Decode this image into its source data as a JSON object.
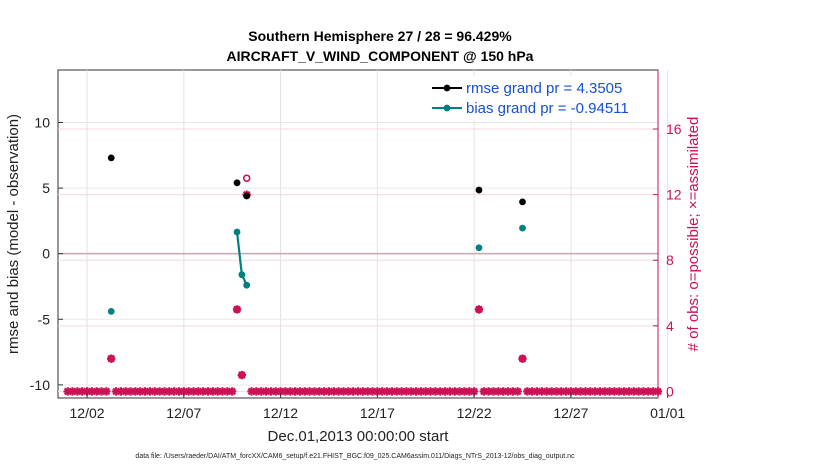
{
  "chart_data": {
    "type": "scatter",
    "title_line1": "Southern Hemisphere 27 / 28 = 96.429%",
    "title_line2": "AIRCRAFT_V_WIND_COMPONENT @ 150 hPa",
    "xlabel": "Dec.01,2013 00:00:00 start",
    "ylabel_left": "rmse and bias (model - observation)",
    "ylabel_right": "# of obs: o=possible; ×=assimilated",
    "xlim": [
      0.5,
      31.5
    ],
    "ylim_left": [
      -11,
      14
    ],
    "ylim_right": [
      -0.4,
      19.6
    ],
    "x_ticks": [
      2,
      7,
      12,
      17,
      22,
      27,
      32
    ],
    "x_tick_labels": [
      "12/02",
      "12/07",
      "12/12",
      "12/17",
      "12/22",
      "12/27",
      "01/01"
    ],
    "y_ticks_left": [
      -10,
      -5,
      0,
      5,
      10
    ],
    "y_tick_labels_left": [
      "-10",
      "-5",
      "0",
      "5",
      "10"
    ],
    "y_ticks_right": [
      0,
      4,
      8,
      12,
      16
    ],
    "y_tick_labels_right": [
      "0",
      "4",
      "8",
      "12",
      "16"
    ],
    "legend": {
      "position": "top-right",
      "entries": [
        "rmse grand pr = 4.3505",
        "bias grand pr = -0.94511"
      ]
    },
    "series": [
      {
        "name": "rmse",
        "color": "#000000",
        "axis": "left",
        "points": [
          [
            3.25,
            7.3
          ],
          [
            9.75,
            5.4
          ],
          [
            10.25,
            4.4
          ],
          [
            22.25,
            4.85
          ],
          [
            24.5,
            3.95
          ]
        ]
      },
      {
        "name": "bias",
        "color": "#008080",
        "axis": "left",
        "points": [
          [
            3.25,
            -4.4
          ],
          [
            9.75,
            1.65
          ],
          [
            10.0,
            -1.6
          ],
          [
            10.25,
            -2.4
          ],
          [
            22.25,
            0.45
          ],
          [
            24.5,
            1.95
          ]
        ],
        "connected_segments": [
          [
            1,
            2,
            3
          ]
        ]
      },
      {
        "name": "obs possible",
        "color": "#cc1156",
        "marker": "circle",
        "axis": "right",
        "points": [
          [
            3.25,
            2
          ],
          [
            9.75,
            5
          ],
          [
            10.0,
            1
          ],
          [
            10.25,
            13
          ],
          [
            22.25,
            5
          ],
          [
            24.5,
            2
          ]
        ]
      },
      {
        "name": "obs assimilated",
        "color": "#cc1156",
        "marker": "star",
        "axis": "right",
        "points": [
          [
            3.25,
            2
          ],
          [
            9.75,
            5
          ],
          [
            10.0,
            1
          ],
          [
            10.25,
            12
          ],
          [
            22.25,
            5
          ],
          [
            24.5,
            2
          ]
        ]
      }
    ],
    "zero_line_obs_count": 0
  },
  "footer": "data file: /Users/raeder/DAI/ATM_forcXX/CAM6_setup/f.e21.FHIST_BGC.f09_025.CAM6assim.011/Diags_NTrS_2013-12/obs_diag_output.nc",
  "colors": {
    "rmse": "#000000",
    "bias": "#008080",
    "obs": "#cc1156",
    "legend_text": "#1450d6"
  }
}
